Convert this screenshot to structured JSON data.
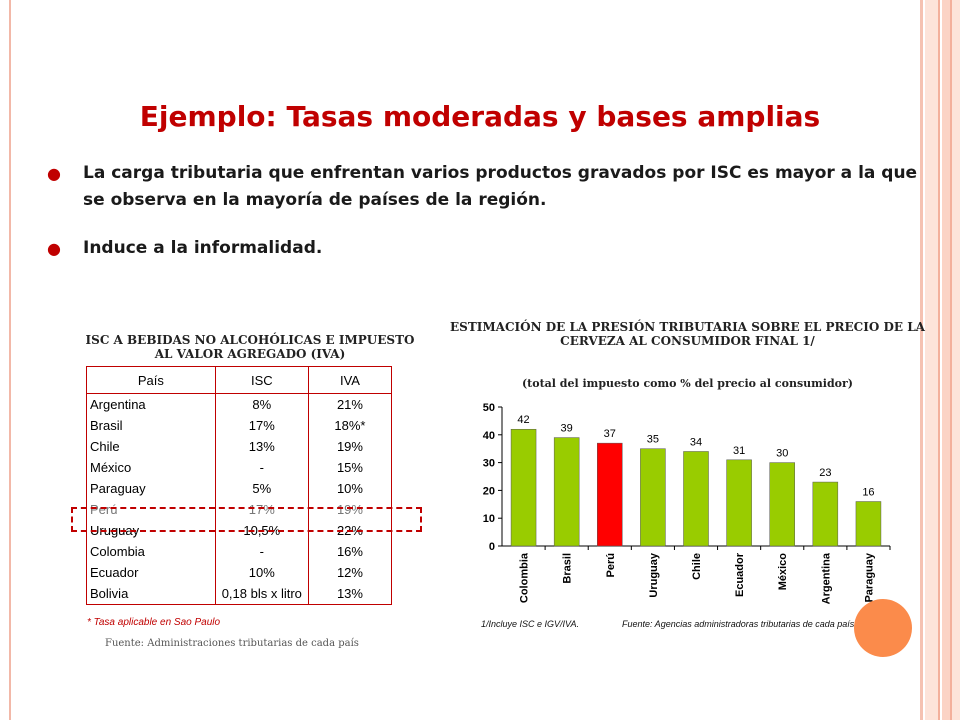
{
  "slide": {
    "title": "Ejemplo: Tasas moderadas y bases amplias",
    "bullets": [
      "La carga tributaria que enfrentan varios productos gravados por ISC es mayor a la que se observa en la mayoría de países de la región.",
      "Induce a la informalidad."
    ],
    "bullet_icon": "bullet-dot-icon",
    "accent_color": "#c00000"
  },
  "table": {
    "caption": "ISC A BEBIDAS NO ALCOHÓLICAS E IMPUESTO AL VALOR AGREGADO (IVA)",
    "headers": [
      "País",
      "ISC",
      "IVA"
    ],
    "rows": [
      [
        "Argentina",
        "8%",
        "21%"
      ],
      [
        "Brasil",
        "17%",
        "18%*"
      ],
      [
        "Chile",
        "13%",
        "19%"
      ],
      [
        "México",
        "-",
        "15%"
      ],
      [
        "Paraguay",
        "5%",
        "10%"
      ],
      [
        "Perú",
        "17%",
        "19%"
      ],
      [
        "Uruguay",
        "10,5%",
        "22%"
      ],
      [
        "Colombia",
        "-",
        "16%"
      ],
      [
        "Ecuador",
        "10%",
        "12%"
      ],
      [
        "Bolivia",
        "0,18 bls x litro",
        "13%"
      ]
    ],
    "highlight_row": "Perú",
    "note": "* Tasa aplicable en Sao Paulo",
    "source": "Fuente: Administraciones tributarias de cada país"
  },
  "chart_data": {
    "type": "bar",
    "title": "ESTIMACIÓN DE LA PRESIÓN TRIBUTARIA SOBRE EL PRECIO DE LA CERVEZA AL CONSUMIDOR FINAL 1/",
    "subtitle": "(total del impuesto como % del precio al consumidor)",
    "categories": [
      "Colombia",
      "Brasil",
      "Perú",
      "Uruguay",
      "Chile",
      "Ecuador",
      "México",
      "Argentina",
      "Paraguay"
    ],
    "values": [
      42,
      39,
      37,
      35,
      34,
      31,
      30,
      23,
      16
    ],
    "ylim": [
      0,
      50
    ],
    "yticks": [
      0,
      10,
      20,
      30,
      40,
      50
    ],
    "bar_color": "#99cc00",
    "highlight_category": "Perú",
    "highlight_color": "#ff0000",
    "xlabel": "",
    "ylabel": "",
    "notes": [
      "1/Incluye ISC e IGV/IVA.",
      "Fuente: Agencias administradoras tributarias de cada país."
    ]
  }
}
